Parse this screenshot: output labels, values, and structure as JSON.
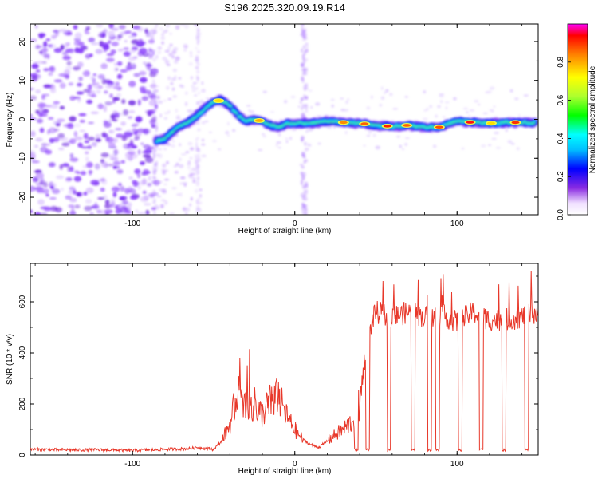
{
  "chart_data": [
    {
      "type": "heatmap",
      "title": "S196.2025.320.09.19.R14",
      "xlabel": "Height of straight line (km)",
      "ylabel": "Frequency (Hz)",
      "xlim": [
        -163,
        150
      ],
      "ylim": [
        -24.5,
        24.5
      ],
      "xticks": [
        "-100",
        "0",
        "100"
      ],
      "yticks": [
        "-20",
        "-10",
        "0",
        "10",
        "20"
      ],
      "colorbar": {
        "label": "Normalized spectral amplitude",
        "range": [
          0,
          1
        ],
        "ticks": [
          "0.0",
          "0.2",
          "0.4",
          "0.6",
          "0.8"
        ]
      },
      "trace": {
        "x": [
          -85,
          -80,
          -75,
          -70,
          -65,
          -60,
          -55,
          -50,
          -45,
          -40,
          -35,
          -30,
          -25,
          -20,
          -15,
          -10,
          -5,
          0,
          10,
          20,
          30,
          40,
          50,
          60,
          70,
          80,
          90,
          95,
          100,
          110,
          120,
          130,
          140,
          148
        ],
        "freq": [
          -5.5,
          -5.0,
          -3.0,
          -1.5,
          -0.5,
          1.0,
          3.0,
          4.5,
          5.0,
          3.5,
          1.0,
          -0.5,
          0.0,
          -0.5,
          -1.5,
          -2.0,
          -1.0,
          -1.0,
          -1.0,
          -0.5,
          -0.8,
          -1.0,
          -1.5,
          -1.8,
          -1.5,
          -2.0,
          -2.0,
          -1.0,
          -0.5,
          -0.8,
          -1.0,
          -0.8,
          -0.8,
          -0.8
        ]
      }
    },
    {
      "type": "line",
      "xlabel": "Height of straight line (km)",
      "ylabel": "SNR (10 * v/v)",
      "xlim": [
        -163,
        150
      ],
      "ylim": [
        0,
        750
      ],
      "xticks": [
        "-100",
        "0",
        "100"
      ],
      "yticks": [
        "0",
        "200",
        "400",
        "600"
      ],
      "series": [
        {
          "name": "SNR",
          "color": "#e8382a",
          "x": [
            -163,
            -140,
            -120,
            -100,
            -80,
            -65,
            -60,
            -50,
            -45,
            -40,
            -35,
            -30,
            -25,
            -20,
            -15,
            -10,
            -5,
            0,
            5,
            10,
            15,
            20,
            25,
            30,
            35,
            40,
            45,
            50,
            60,
            70,
            80,
            90,
            100,
            110,
            120,
            130,
            140,
            150
          ],
          "y": [
            22,
            20,
            20,
            18,
            22,
            25,
            30,
            22,
            55,
            120,
            250,
            180,
            200,
            160,
            210,
            230,
            150,
            100,
            60,
            40,
            30,
            55,
            80,
            100,
            130,
            200,
            480,
            560,
            540,
            560,
            540,
            550,
            520,
            560,
            530,
            530,
            540,
            560
          ]
        }
      ]
    }
  ]
}
